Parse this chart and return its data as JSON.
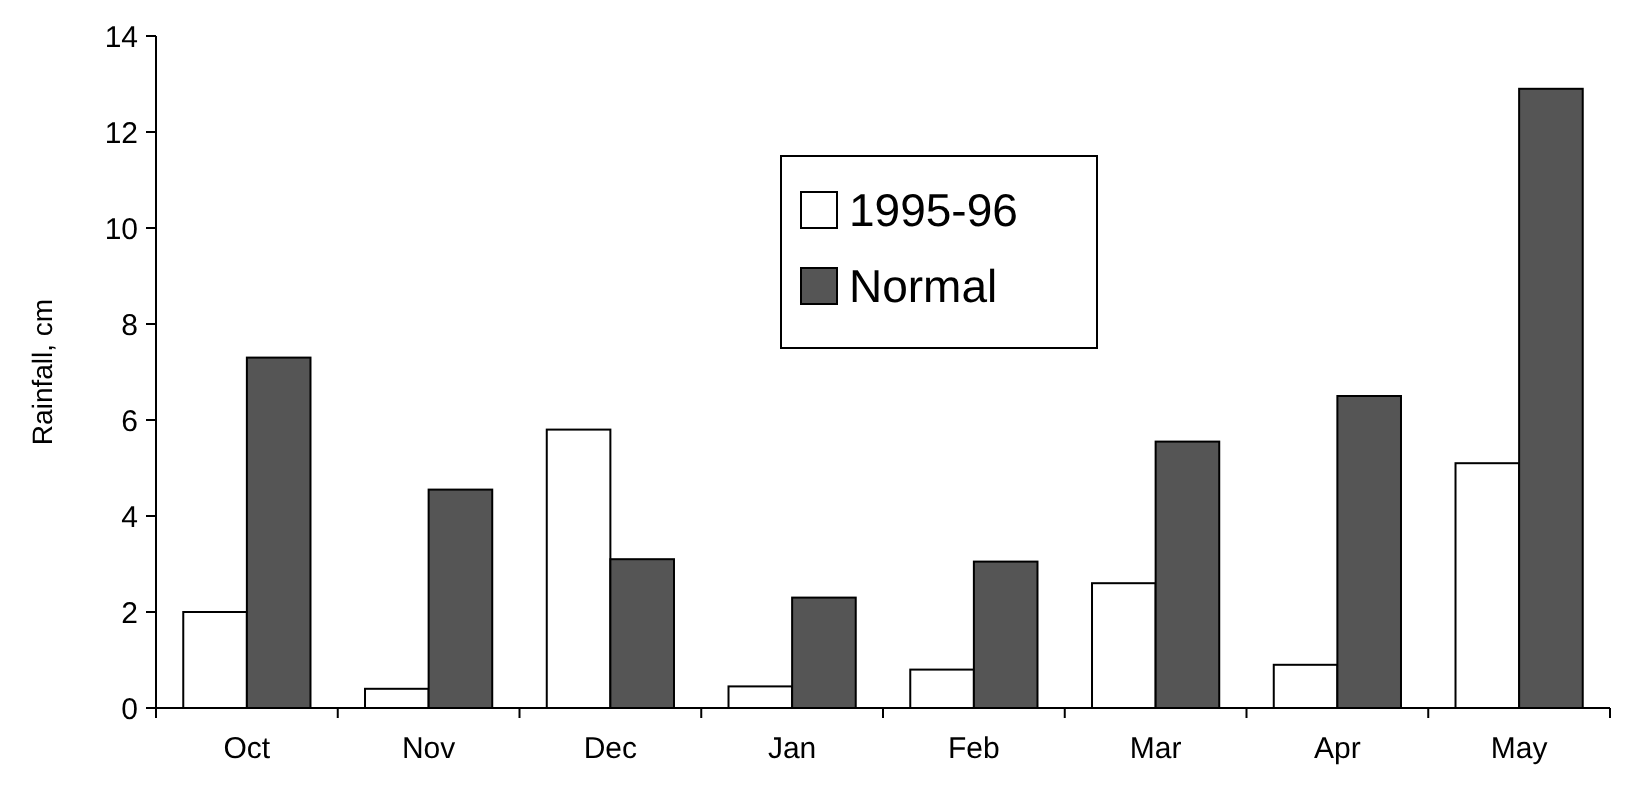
{
  "chart_data": {
    "type": "bar",
    "ylabel": "Rainfall, cm",
    "categories": [
      "Oct",
      "Nov",
      "Dec",
      "Jan",
      "Feb",
      "Mar",
      "Apr",
      "May"
    ],
    "series": [
      {
        "name": "1995-96",
        "color": "#ffffff",
        "values": [
          2.0,
          0.4,
          5.8,
          0.45,
          0.8,
          2.6,
          0.9,
          5.1
        ]
      },
      {
        "name": "Normal",
        "color": "#555555",
        "values": [
          7.3,
          4.55,
          3.1,
          2.3,
          3.05,
          5.55,
          6.5,
          12.9
        ]
      }
    ],
    "ylim": [
      0,
      14
    ],
    "yticks": [
      0,
      2,
      4,
      6,
      8,
      10,
      12,
      14
    ],
    "legend": "top",
    "grid": false
  }
}
